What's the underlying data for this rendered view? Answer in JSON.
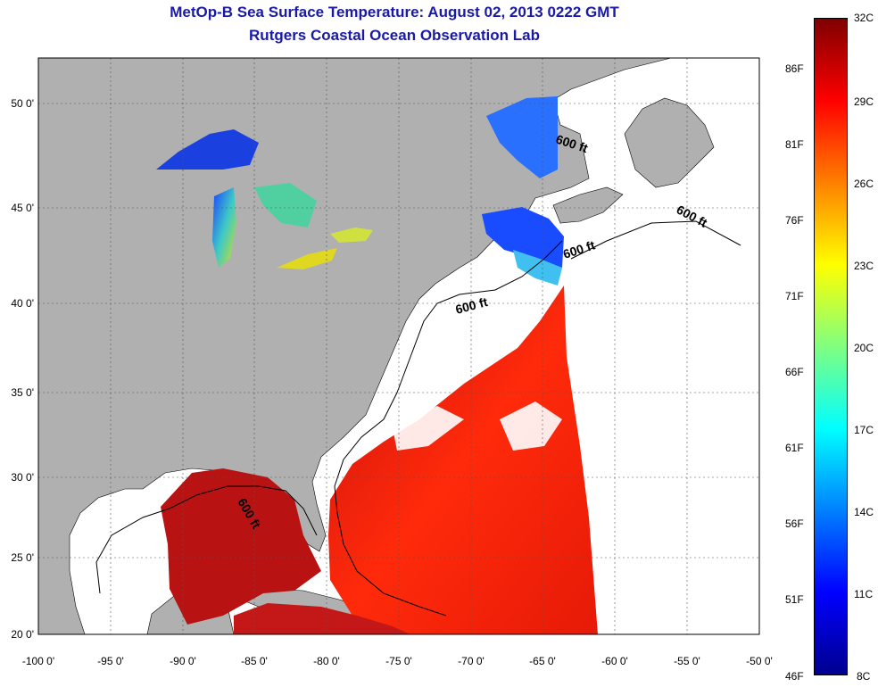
{
  "title_line1": "MetOp-B Sea Surface Temperature:  August 02, 2013 0222 GMT",
  "title_line2": "Rutgers Coastal Ocean Observation Lab",
  "lat_ticks": [
    "50 0'",
    "45 0'",
    "40 0'",
    "35 0'",
    "30 0'",
    "25 0'",
    "20 0'"
  ],
  "lon_ticks": [
    "-100 0'",
    "-95 0'",
    "-90 0'",
    "-85 0'",
    "-80 0'",
    "-75 0'",
    "-70 0'",
    "-65 0'",
    "-60 0'",
    "-55 0'",
    "-50 0'"
  ],
  "contour_labels": [
    "600 ft",
    "600 ft",
    "600 ft",
    "600 ft",
    "600 ft"
  ],
  "colorbar": {
    "celsius": [
      "32C",
      "29C",
      "26C",
      "23C",
      "20C",
      "17C",
      "14C",
      "11C",
      "8C"
    ],
    "fahrenheit": [
      "86F",
      "81F",
      "76F",
      "71F",
      "66F",
      "61F",
      "56F",
      "51F",
      "46F"
    ],
    "colors": [
      "#7f0000",
      "#ff0000",
      "#ff8000",
      "#ffff00",
      "#80ff80",
      "#00ffff",
      "#0080ff",
      "#0000ff",
      "#00008f"
    ]
  },
  "colors": {
    "land": "#b0b0b0",
    "no_data": "#ffffff",
    "title": "#1a1aa6"
  }
}
